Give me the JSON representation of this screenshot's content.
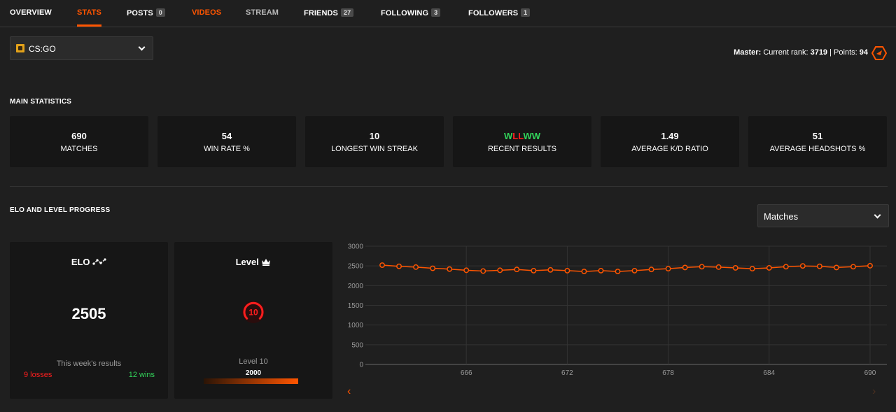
{
  "nav": {
    "overview": "OVERVIEW",
    "stats": "STATS",
    "posts": "POSTS",
    "posts_count": "0",
    "videos": "VIDEOS",
    "stream": "STREAM",
    "friends": "FRIENDS",
    "friends_count": "27",
    "following": "FOLLOWING",
    "following_count": "3",
    "followers": "FOLLOWERS",
    "followers_count": "1"
  },
  "game_select": {
    "value": "CS:GO",
    "icon": "csgo-icon"
  },
  "rank": {
    "tier": "Master:",
    "rank_label": "Current rank:",
    "rank_value": "3719",
    "separator": "|",
    "points_label": "Points:",
    "points_value": "94",
    "icon": "master-rank-icon"
  },
  "main_stats": {
    "title": "MAIN STATISTICS",
    "cards": [
      {
        "value": "690",
        "label": "MATCHES"
      },
      {
        "value": "54",
        "label": "WIN RATE %"
      },
      {
        "value": "10",
        "label": "LONGEST WIN STREAK"
      },
      {
        "value": "",
        "label": "RECENT RESULTS"
      },
      {
        "value": "1.49",
        "label": "AVERAGE K/D RATIO"
      },
      {
        "value": "51",
        "label": "AVERAGE HEADSHOTS %"
      }
    ],
    "recent_results": [
      "W",
      "L",
      "L",
      "W",
      "W"
    ]
  },
  "elo_section": {
    "title": "ELO AND LEVEL PROGRESS",
    "range_select": "Matches",
    "elo_card": {
      "title": "ELO",
      "value": "2505",
      "week_label": "This week's results",
      "losses": "9 losses",
      "wins": "12 wins"
    },
    "level_card": {
      "title": "Level",
      "level_number": "10",
      "level_label": "Level 10",
      "elo_threshold": "2000"
    }
  },
  "colors": {
    "accent": "#ff5500",
    "win": "#32d35a",
    "loss": "#ff1e1e",
    "card_bg": "#161616",
    "page_bg": "#1f1f1f"
  },
  "chart_data": {
    "type": "line",
    "x": [
      661,
      662,
      663,
      664,
      665,
      666,
      667,
      668,
      669,
      670,
      671,
      672,
      673,
      674,
      675,
      676,
      677,
      678,
      679,
      680,
      681,
      682,
      683,
      684,
      685,
      686,
      687,
      688,
      689,
      690
    ],
    "values": [
      2520,
      2490,
      2470,
      2440,
      2420,
      2390,
      2370,
      2390,
      2410,
      2380,
      2400,
      2380,
      2360,
      2380,
      2360,
      2380,
      2410,
      2430,
      2460,
      2480,
      2470,
      2450,
      2430,
      2450,
      2480,
      2500,
      2490,
      2460,
      2480,
      2505
    ],
    "x_ticks": [
      666,
      672,
      678,
      684,
      690
    ],
    "y_ticks": [
      0,
      500,
      1000,
      1500,
      2000,
      2500,
      3000
    ],
    "ylim": [
      0,
      3000
    ],
    "xlim": [
      660,
      691
    ],
    "grid": true,
    "line_color": "#ff5500"
  }
}
